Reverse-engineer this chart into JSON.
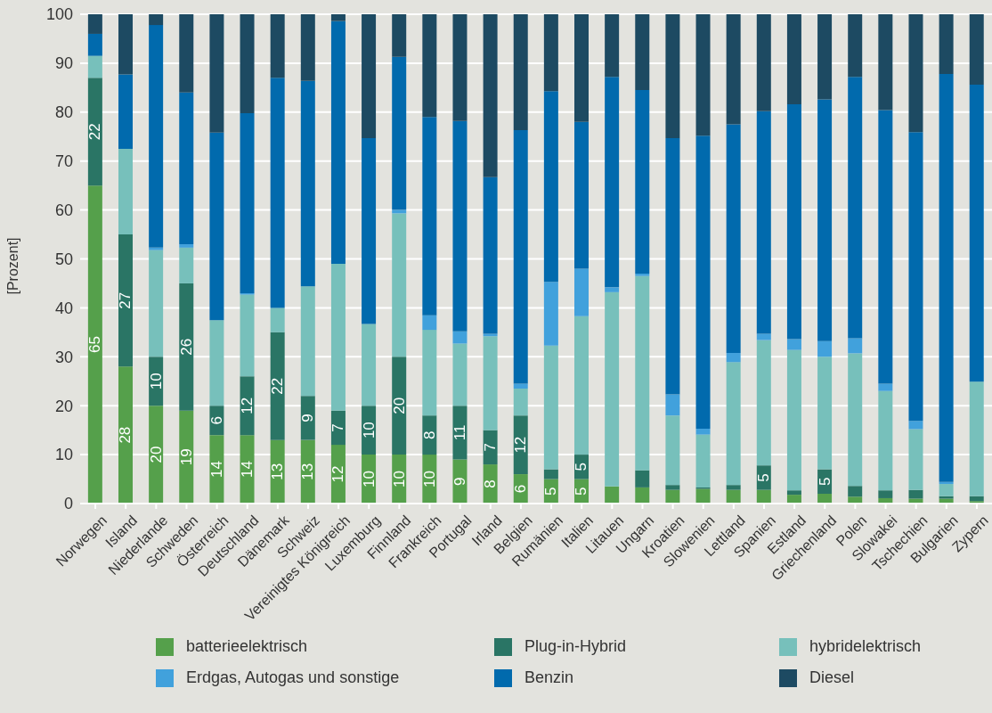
{
  "chart_data": {
    "type": "bar",
    "stacked": true,
    "ylabel": "[Prozent]",
    "ylim": [
      0,
      100
    ],
    "yticks": [
      0,
      10,
      20,
      30,
      40,
      50,
      60,
      70,
      80,
      90,
      100
    ],
    "grid": "y",
    "legend": "bottom",
    "categories": [
      "Norwegen",
      "Island",
      "Niederlande",
      "Schweden",
      "Österreich",
      "Deutschland",
      "Dänemark",
      "Schweiz",
      "Vereinigtes Königreich",
      "Luxemburg",
      "Finnland",
      "Frankreich",
      "Portugal",
      "Irland",
      "Belgien",
      "Rumänien",
      "Italien",
      "Litauen",
      "Ungarn",
      "Kroatien",
      "Slowenien",
      "Lettland",
      "Spanien",
      "Estland",
      "Griechenland",
      "Polen",
      "Slowakei",
      "Tschechien",
      "Bulgarien",
      "Zypern"
    ],
    "series": [
      {
        "name": "batterieelektrisch",
        "color": "#55a04b",
        "values": [
          65,
          28,
          20,
          19,
          14,
          14,
          13,
          13,
          12,
          10,
          10,
          10,
          9,
          8,
          6,
          5,
          5,
          3.5,
          3.3,
          2.8,
          3.0,
          2.8,
          2.8,
          1.8,
          2.0,
          1.4,
          1.1,
          1.0,
          1.0,
          0.5
        ],
        "value_labels": [
          "65",
          "28",
          "20",
          "19",
          "14",
          "14",
          "13",
          "13",
          "12",
          "10",
          "10",
          "10",
          "9",
          "8",
          "6",
          "5",
          "5",
          null,
          null,
          null,
          null,
          null,
          null,
          null,
          null,
          null,
          null,
          null,
          null,
          null
        ]
      },
      {
        "name": "Plug-in-Hybrid",
        "color": "#2a7565",
        "values": [
          22,
          27,
          10,
          26,
          6,
          12,
          22,
          9,
          7,
          10,
          20,
          8,
          11,
          7,
          12,
          2,
          5,
          0,
          3.5,
          1.0,
          0.3,
          1.0,
          5,
          0.9,
          5,
          2.2,
          1.6,
          1.8,
          0.5,
          1.0
        ],
        "value_labels": [
          "22",
          "27",
          "10",
          "26",
          "6",
          "12",
          "22",
          "9",
          "7",
          "10",
          "20",
          "8",
          "11",
          "7",
          "12",
          null,
          "5",
          null,
          null,
          null,
          null,
          null,
          "5",
          null,
          "5",
          null,
          null,
          null,
          null,
          null
        ]
      },
      {
        "name": "hybridelektrisch",
        "color": "#77c0bb",
        "values": [
          4.5,
          17.5,
          21.8,
          7.3,
          17.5,
          16.7,
          5,
          22.4,
          30,
          16.7,
          29.3,
          17.5,
          12.7,
          19.2,
          5.5,
          25.3,
          28.3,
          39.7,
          39.7,
          14.2,
          10.8,
          25.1,
          25.6,
          28.7,
          23,
          27.1,
          20.3,
          12.4,
          2.5,
          23.4
        ]
      },
      {
        "name": "Erdgas, Autogas und sonstige",
        "color": "#41a1dc",
        "values": [
          0,
          0,
          0.5,
          0.7,
          0,
          0.3,
          0,
          0,
          0,
          0,
          0.7,
          3,
          2.5,
          0.5,
          1,
          13,
          9.7,
          1,
          0.5,
          4.3,
          1.2,
          1.9,
          1.3,
          2.2,
          3.2,
          3.1,
          1.5,
          1.7,
          0.4,
          0
        ]
      },
      {
        "name": "Benzin",
        "color": "#016aad",
        "values": [
          4.5,
          15.2,
          45.5,
          31,
          38.3,
          36.8,
          47,
          42,
          49.6,
          38,
          31.3,
          40.5,
          43,
          32,
          51.8,
          39,
          30,
          43,
          37.5,
          52.4,
          59.9,
          46.7,
          45.5,
          48,
          49.4,
          53.4,
          55.9,
          59,
          83.4,
          60.7
        ]
      },
      {
        "name": "Diesel",
        "color": "#1d4a62",
        "values": [
          4,
          12.3,
          2.2,
          16,
          24.2,
          20.2,
          13,
          13.6,
          1.4,
          25.3,
          8.7,
          21,
          21.8,
          33.3,
          23.7,
          15.7,
          22,
          12.8,
          15.5,
          25.3,
          24.8,
          22.5,
          19.8,
          18.4,
          17.4,
          12.8,
          19.6,
          24.1,
          12.2,
          14.4
        ]
      }
    ]
  }
}
